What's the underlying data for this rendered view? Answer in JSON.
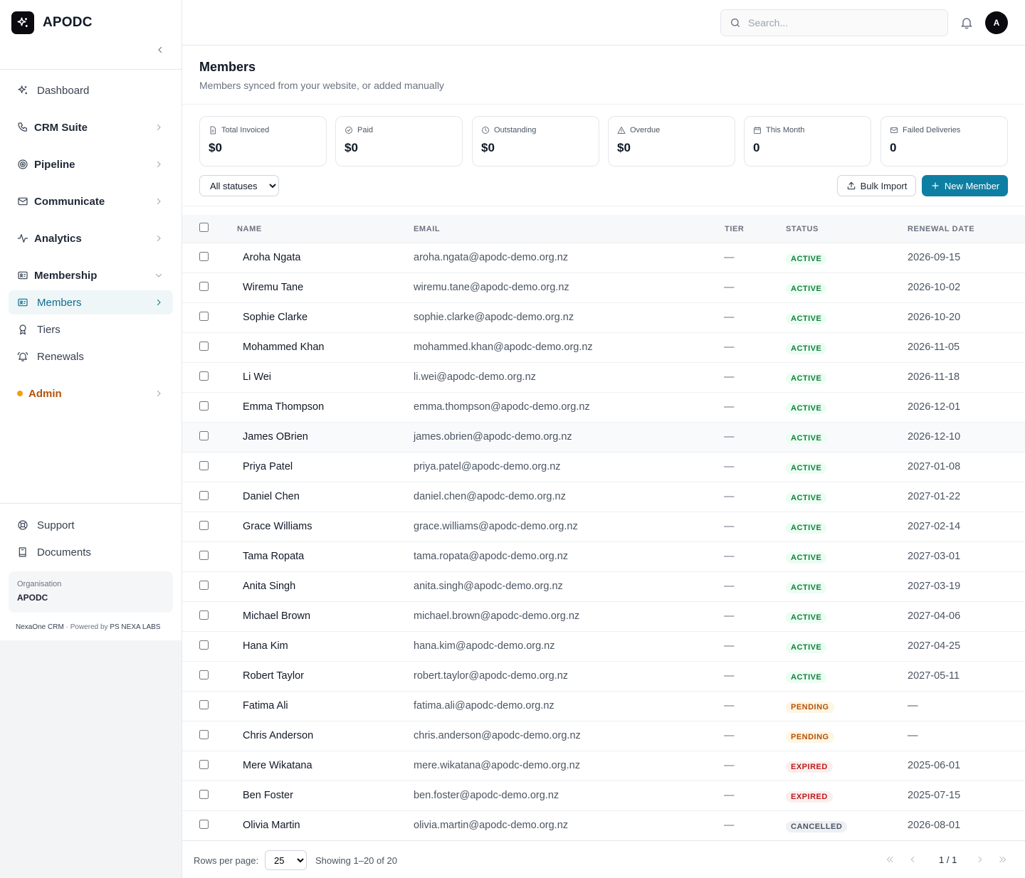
{
  "app": {
    "name": "APODC"
  },
  "sidebar": {
    "nav": [
      {
        "label": "Dashboard",
        "icon": "sparkles-icon"
      },
      {
        "label": "CRM Suite",
        "icon": "phone-icon"
      },
      {
        "label": "Pipeline",
        "icon": "target-icon"
      },
      {
        "label": "Communicate",
        "icon": "mail-icon"
      },
      {
        "label": "Analytics",
        "icon": "activity-icon"
      },
      {
        "label": "Membership",
        "icon": "id-card-icon"
      },
      {
        "label": "Members",
        "icon": "id-card-icon"
      },
      {
        "label": "Tiers",
        "icon": "award-icon"
      },
      {
        "label": "Renewals",
        "icon": "bell-ring-icon"
      },
      {
        "label": "Admin",
        "icon": "status-dot"
      }
    ],
    "bottom": [
      {
        "label": "Support",
        "icon": "lifebuoy-icon"
      },
      {
        "label": "Documents",
        "icon": "book-icon"
      }
    ],
    "org": {
      "label": "Organisation",
      "name": "APODC"
    },
    "powered": {
      "product": "NexaOne CRM",
      "separator": "·",
      "by": "Powered by",
      "company": "PS NEXA LABS"
    }
  },
  "header": {
    "search_placeholder": "Search...",
    "avatar_initial": "A"
  },
  "page": {
    "title": "Members",
    "subtitle": "Members synced from your website, or added manually"
  },
  "stats": [
    {
      "label": "Total Invoiced",
      "value": "$0",
      "icon": "file-icon"
    },
    {
      "label": "Paid",
      "value": "$0",
      "icon": "check-circle-icon"
    },
    {
      "label": "Outstanding",
      "value": "$0",
      "icon": "clock-icon"
    },
    {
      "label": "Overdue",
      "value": "$0",
      "icon": "alert-triangle-icon"
    },
    {
      "label": "This Month",
      "value": "0",
      "icon": "calendar-icon"
    },
    {
      "label": "Failed Deliveries",
      "value": "0",
      "icon": "mail-icon"
    }
  ],
  "toolbar": {
    "status_filter": "All statuses",
    "bulk_import": "Bulk Import",
    "new_member": "New Member"
  },
  "table": {
    "columns": {
      "name": "NAME",
      "email": "EMAIL",
      "tier": "TIER",
      "status": "STATUS",
      "renewal": "RENEWAL DATE"
    },
    "rows": [
      {
        "name": "Aroha Ngata",
        "email": "aroha.ngata@apodc-demo.org.nz",
        "tier": "—",
        "status": "ACTIVE",
        "renewal": "2026-09-15"
      },
      {
        "name": "Wiremu Tane",
        "email": "wiremu.tane@apodc-demo.org.nz",
        "tier": "—",
        "status": "ACTIVE",
        "renewal": "2026-10-02"
      },
      {
        "name": "Sophie Clarke",
        "email": "sophie.clarke@apodc-demo.org.nz",
        "tier": "—",
        "status": "ACTIVE",
        "renewal": "2026-10-20"
      },
      {
        "name": "Mohammed Khan",
        "email": "mohammed.khan@apodc-demo.org.nz",
        "tier": "—",
        "status": "ACTIVE",
        "renewal": "2026-11-05"
      },
      {
        "name": "Li Wei",
        "email": "li.wei@apodc-demo.org.nz",
        "tier": "—",
        "status": "ACTIVE",
        "renewal": "2026-11-18"
      },
      {
        "name": "Emma Thompson",
        "email": "emma.thompson@apodc-demo.org.nz",
        "tier": "—",
        "status": "ACTIVE",
        "renewal": "2026-12-01"
      },
      {
        "name": "James OBrien",
        "email": "james.obrien@apodc-demo.org.nz",
        "tier": "—",
        "status": "ACTIVE",
        "renewal": "2026-12-10"
      },
      {
        "name": "Priya Patel",
        "email": "priya.patel@apodc-demo.org.nz",
        "tier": "—",
        "status": "ACTIVE",
        "renewal": "2027-01-08"
      },
      {
        "name": "Daniel Chen",
        "email": "daniel.chen@apodc-demo.org.nz",
        "tier": "—",
        "status": "ACTIVE",
        "renewal": "2027-01-22"
      },
      {
        "name": "Grace Williams",
        "email": "grace.williams@apodc-demo.org.nz",
        "tier": "—",
        "status": "ACTIVE",
        "renewal": "2027-02-14"
      },
      {
        "name": "Tama Ropata",
        "email": "tama.ropata@apodc-demo.org.nz",
        "tier": "—",
        "status": "ACTIVE",
        "renewal": "2027-03-01"
      },
      {
        "name": "Anita Singh",
        "email": "anita.singh@apodc-demo.org.nz",
        "tier": "—",
        "status": "ACTIVE",
        "renewal": "2027-03-19"
      },
      {
        "name": "Michael Brown",
        "email": "michael.brown@apodc-demo.org.nz",
        "tier": "—",
        "status": "ACTIVE",
        "renewal": "2027-04-06"
      },
      {
        "name": "Hana Kim",
        "email": "hana.kim@apodc-demo.org.nz",
        "tier": "—",
        "status": "ACTIVE",
        "renewal": "2027-04-25"
      },
      {
        "name": "Robert Taylor",
        "email": "robert.taylor@apodc-demo.org.nz",
        "tier": "—",
        "status": "ACTIVE",
        "renewal": "2027-05-11"
      },
      {
        "name": "Fatima Ali",
        "email": "fatima.ali@apodc-demo.org.nz",
        "tier": "—",
        "status": "PENDING",
        "renewal": "—"
      },
      {
        "name": "Chris Anderson",
        "email": "chris.anderson@apodc-demo.org.nz",
        "tier": "—",
        "status": "PENDING",
        "renewal": "—"
      },
      {
        "name": "Mere Wikatana",
        "email": "mere.wikatana@apodc-demo.org.nz",
        "tier": "—",
        "status": "EXPIRED",
        "renewal": "2025-06-01"
      },
      {
        "name": "Ben Foster",
        "email": "ben.foster@apodc-demo.org.nz",
        "tier": "—",
        "status": "EXPIRED",
        "renewal": "2025-07-15"
      },
      {
        "name": "Olivia Martin",
        "email": "olivia.martin@apodc-demo.org.nz",
        "tier": "—",
        "status": "CANCELLED",
        "renewal": "2026-08-01"
      }
    ]
  },
  "pagination": {
    "rows_label": "Rows per page:",
    "rows_per_page": "25",
    "showing": "Showing 1–20 of 20",
    "page_info": "1 / 1"
  },
  "colors": {
    "accent": "#0e7fa3",
    "active_nav": "#0e6e8b",
    "admin": "#b45309"
  }
}
